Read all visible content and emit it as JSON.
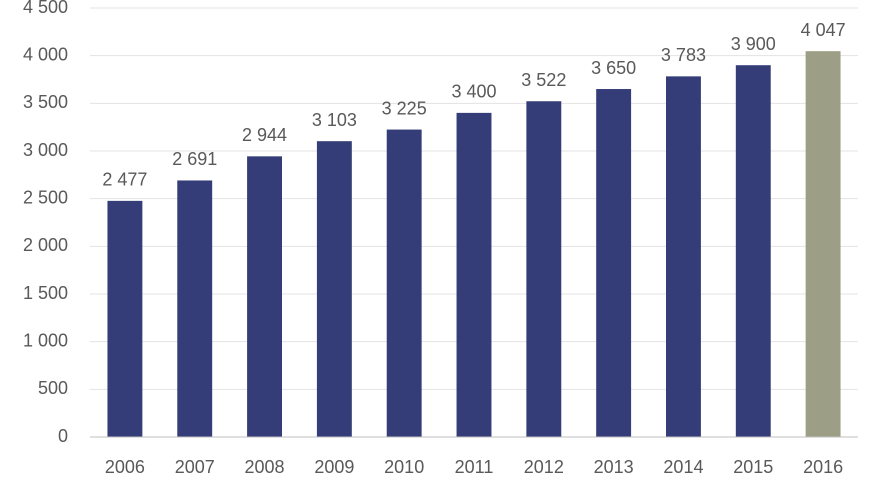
{
  "chart_data": {
    "type": "bar",
    "categories": [
      "2006",
      "2007",
      "2008",
      "2009",
      "2010",
      "2011",
      "2012",
      "2013",
      "2014",
      "2015",
      "2016"
    ],
    "values": [
      2477,
      2691,
      2944,
      3103,
      3225,
      3400,
      3522,
      3650,
      3783,
      3900,
      4047
    ],
    "value_labels": [
      "2 477",
      "2 691",
      "2 944",
      "3 103",
      "3 225",
      "3 400",
      "3 522",
      "3 650",
      "3 783",
      "3 900",
      "4 047"
    ],
    "colors": [
      "#353d78",
      "#353d78",
      "#353d78",
      "#353d78",
      "#353d78",
      "#353d78",
      "#353d78",
      "#353d78",
      "#353d78",
      "#353d78",
      "#9c9e86"
    ],
    "ylim": [
      0,
      4500
    ],
    "yticks": [
      0,
      500,
      {
        "value": 1000,
        "label": "1 000"
      },
      {
        "value": 1500,
        "label": "1 500"
      },
      {
        "value": 2000,
        "label": "2 000"
      },
      {
        "value": 2500,
        "label": "2 500"
      },
      {
        "value": 3000,
        "label": "3 000"
      },
      {
        "value": 3500,
        "label": "3 500"
      },
      {
        "value": 4000,
        "label": "4 000"
      },
      {
        "value": 4500,
        "label": "4 500"
      }
    ],
    "grid": true
  }
}
